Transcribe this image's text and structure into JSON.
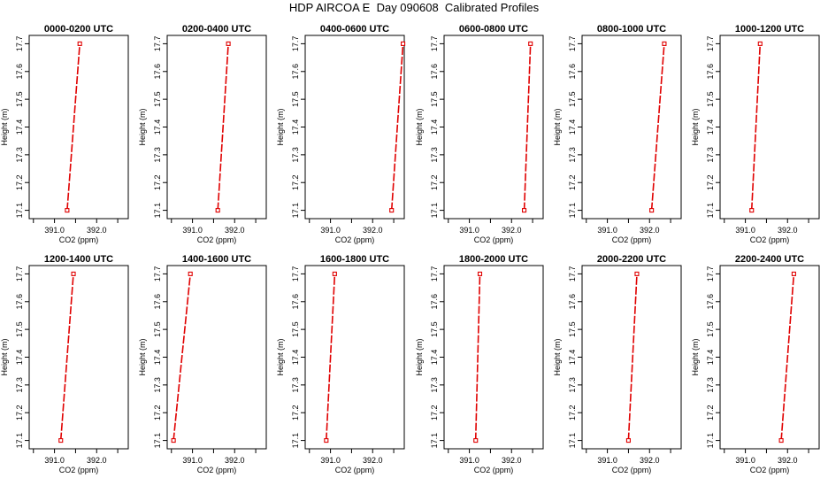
{
  "title": "HDP AIRCOA E  Day 090608  Calibrated Profiles",
  "colors": {
    "line": "#e00000",
    "marker": "#e00000",
    "axis": "#000000"
  },
  "chart_data": [
    {
      "type": "line",
      "title": "0000-0200 UTC",
      "xlabel": "CO2 (ppm)",
      "ylabel": "Height (m)",
      "xlim": [
        390.4,
        392.75
      ],
      "ylim": [
        17.07,
        17.73
      ],
      "xticks": [
        {
          "v": 390.5,
          "label": ""
        },
        {
          "v": 391.0,
          "label": "391.0"
        },
        {
          "v": 391.5,
          "label": ""
        },
        {
          "v": 392.0,
          "label": "392.0"
        },
        {
          "v": 392.5,
          "label": ""
        }
      ],
      "yticks": [
        {
          "v": 17.1,
          "label": "17.1"
        },
        {
          "v": 17.2,
          "label": "17.2"
        },
        {
          "v": 17.3,
          "label": "17.3"
        },
        {
          "v": 17.4,
          "label": "17.4"
        },
        {
          "v": 17.5,
          "label": "17.5"
        },
        {
          "v": 17.6,
          "label": "17.6"
        },
        {
          "v": 17.7,
          "label": "17.7"
        }
      ],
      "points": [
        {
          "x": 391.3,
          "y": 17.1
        },
        {
          "x": 391.6,
          "y": 17.7
        }
      ]
    },
    {
      "type": "line",
      "title": "0200-0400 UTC",
      "xlabel": "CO2 (ppm)",
      "ylabel": "Height (m)",
      "xlim": [
        390.4,
        392.75
      ],
      "ylim": [
        17.07,
        17.73
      ],
      "xticks": [
        {
          "v": 390.5,
          "label": ""
        },
        {
          "v": 391.0,
          "label": "391.0"
        },
        {
          "v": 391.5,
          "label": ""
        },
        {
          "v": 392.0,
          "label": "392.0"
        },
        {
          "v": 392.5,
          "label": ""
        }
      ],
      "yticks": [
        {
          "v": 17.1,
          "label": "17.1"
        },
        {
          "v": 17.2,
          "label": "17.2"
        },
        {
          "v": 17.3,
          "label": "17.3"
        },
        {
          "v": 17.4,
          "label": "17.4"
        },
        {
          "v": 17.5,
          "label": "17.5"
        },
        {
          "v": 17.6,
          "label": "17.6"
        },
        {
          "v": 17.7,
          "label": "17.7"
        }
      ],
      "points": [
        {
          "x": 391.6,
          "y": 17.1
        },
        {
          "x": 391.85,
          "y": 17.7
        }
      ]
    },
    {
      "type": "line",
      "title": "0400-0600 UTC",
      "xlabel": "CO2 (ppm)",
      "ylabel": "Height (m)",
      "xlim": [
        390.4,
        392.75
      ],
      "ylim": [
        17.07,
        17.73
      ],
      "xticks": [
        {
          "v": 390.5,
          "label": ""
        },
        {
          "v": 391.0,
          "label": "391.0"
        },
        {
          "v": 391.5,
          "label": ""
        },
        {
          "v": 392.0,
          "label": "392.0"
        },
        {
          "v": 392.5,
          "label": ""
        }
      ],
      "yticks": [
        {
          "v": 17.1,
          "label": "17.1"
        },
        {
          "v": 17.2,
          "label": "17.2"
        },
        {
          "v": 17.3,
          "label": "17.3"
        },
        {
          "v": 17.4,
          "label": "17.4"
        },
        {
          "v": 17.5,
          "label": "17.5"
        },
        {
          "v": 17.6,
          "label": "17.6"
        },
        {
          "v": 17.7,
          "label": "17.7"
        }
      ],
      "points": [
        {
          "x": 392.45,
          "y": 17.1
        },
        {
          "x": 392.72,
          "y": 17.7
        }
      ]
    },
    {
      "type": "line",
      "title": "0600-0800 UTC",
      "xlabel": "CO2 (ppm)",
      "ylabel": "Height (m)",
      "xlim": [
        390.4,
        392.75
      ],
      "ylim": [
        17.07,
        17.73
      ],
      "xticks": [
        {
          "v": 390.5,
          "label": ""
        },
        {
          "v": 391.0,
          "label": "391.0"
        },
        {
          "v": 391.5,
          "label": ""
        },
        {
          "v": 392.0,
          "label": "392.0"
        },
        {
          "v": 392.5,
          "label": ""
        }
      ],
      "yticks": [
        {
          "v": 17.1,
          "label": "17.1"
        },
        {
          "v": 17.2,
          "label": "17.2"
        },
        {
          "v": 17.3,
          "label": "17.3"
        },
        {
          "v": 17.4,
          "label": "17.4"
        },
        {
          "v": 17.5,
          "label": "17.5"
        },
        {
          "v": 17.6,
          "label": "17.6"
        },
        {
          "v": 17.7,
          "label": "17.7"
        }
      ],
      "points": [
        {
          "x": 392.3,
          "y": 17.1
        },
        {
          "x": 392.45,
          "y": 17.7
        }
      ]
    },
    {
      "type": "line",
      "title": "0800-1000 UTC",
      "xlabel": "CO2 (ppm)",
      "ylabel": "Height (m)",
      "xlim": [
        390.4,
        392.75
      ],
      "ylim": [
        17.07,
        17.73
      ],
      "xticks": [
        {
          "v": 390.5,
          "label": ""
        },
        {
          "v": 391.0,
          "label": "391.0"
        },
        {
          "v": 391.5,
          "label": ""
        },
        {
          "v": 392.0,
          "label": "392.0"
        },
        {
          "v": 392.5,
          "label": ""
        }
      ],
      "yticks": [
        {
          "v": 17.1,
          "label": "17.1"
        },
        {
          "v": 17.2,
          "label": "17.2"
        },
        {
          "v": 17.3,
          "label": "17.3"
        },
        {
          "v": 17.4,
          "label": "17.4"
        },
        {
          "v": 17.5,
          "label": "17.5"
        },
        {
          "v": 17.6,
          "label": "17.6"
        },
        {
          "v": 17.7,
          "label": "17.7"
        }
      ],
      "points": [
        {
          "x": 392.05,
          "y": 17.1
        },
        {
          "x": 392.35,
          "y": 17.7
        }
      ]
    },
    {
      "type": "line",
      "title": "1000-1200 UTC",
      "xlabel": "CO2 (ppm)",
      "ylabel": "Height (m)",
      "xlim": [
        390.4,
        392.75
      ],
      "ylim": [
        17.07,
        17.73
      ],
      "xticks": [
        {
          "v": 390.5,
          "label": ""
        },
        {
          "v": 391.0,
          "label": "391.0"
        },
        {
          "v": 391.5,
          "label": ""
        },
        {
          "v": 392.0,
          "label": "392.0"
        },
        {
          "v": 392.5,
          "label": ""
        }
      ],
      "yticks": [
        {
          "v": 17.1,
          "label": "17.1"
        },
        {
          "v": 17.2,
          "label": "17.2"
        },
        {
          "v": 17.3,
          "label": "17.3"
        },
        {
          "v": 17.4,
          "label": "17.4"
        },
        {
          "v": 17.5,
          "label": "17.5"
        },
        {
          "v": 17.6,
          "label": "17.6"
        },
        {
          "v": 17.7,
          "label": "17.7"
        }
      ],
      "points": [
        {
          "x": 391.15,
          "y": 17.1
        },
        {
          "x": 391.35,
          "y": 17.7
        }
      ]
    },
    {
      "type": "line",
      "title": "1200-1400 UTC",
      "xlabel": "CO2 (ppm)",
      "ylabel": "Height (m)",
      "xlim": [
        390.4,
        392.75
      ],
      "ylim": [
        17.07,
        17.73
      ],
      "xticks": [
        {
          "v": 390.5,
          "label": ""
        },
        {
          "v": 391.0,
          "label": "391.0"
        },
        {
          "v": 391.5,
          "label": ""
        },
        {
          "v": 392.0,
          "label": "392.0"
        },
        {
          "v": 392.5,
          "label": ""
        }
      ],
      "yticks": [
        {
          "v": 17.1,
          "label": "17.1"
        },
        {
          "v": 17.2,
          "label": "17.2"
        },
        {
          "v": 17.3,
          "label": "17.3"
        },
        {
          "v": 17.4,
          "label": "17.4"
        },
        {
          "v": 17.5,
          "label": "17.5"
        },
        {
          "v": 17.6,
          "label": "17.6"
        },
        {
          "v": 17.7,
          "label": "17.7"
        }
      ],
      "points": [
        {
          "x": 391.15,
          "y": 17.1
        },
        {
          "x": 391.45,
          "y": 17.7
        }
      ]
    },
    {
      "type": "line",
      "title": "1400-1600 UTC",
      "xlabel": "CO2 (ppm)",
      "ylabel": "Height (m)",
      "xlim": [
        390.4,
        392.75
      ],
      "ylim": [
        17.07,
        17.73
      ],
      "xticks": [
        {
          "v": 390.5,
          "label": ""
        },
        {
          "v": 391.0,
          "label": "391.0"
        },
        {
          "v": 391.5,
          "label": ""
        },
        {
          "v": 392.0,
          "label": "392.0"
        },
        {
          "v": 392.5,
          "label": ""
        }
      ],
      "yticks": [
        {
          "v": 17.1,
          "label": "17.1"
        },
        {
          "v": 17.2,
          "label": "17.2"
        },
        {
          "v": 17.3,
          "label": "17.3"
        },
        {
          "v": 17.4,
          "label": "17.4"
        },
        {
          "v": 17.5,
          "label": "17.5"
        },
        {
          "v": 17.6,
          "label": "17.6"
        },
        {
          "v": 17.7,
          "label": "17.7"
        }
      ],
      "points": [
        {
          "x": 390.55,
          "y": 17.1
        },
        {
          "x": 390.95,
          "y": 17.7
        }
      ]
    },
    {
      "type": "line",
      "title": "1600-1800 UTC",
      "xlabel": "CO2 (ppm)",
      "ylabel": "Height (m)",
      "xlim": [
        390.4,
        392.75
      ],
      "ylim": [
        17.07,
        17.73
      ],
      "xticks": [
        {
          "v": 390.5,
          "label": ""
        },
        {
          "v": 391.0,
          "label": "391.0"
        },
        {
          "v": 391.5,
          "label": ""
        },
        {
          "v": 392.0,
          "label": "392.0"
        },
        {
          "v": 392.5,
          "label": ""
        }
      ],
      "yticks": [
        {
          "v": 17.1,
          "label": "17.1"
        },
        {
          "v": 17.2,
          "label": "17.2"
        },
        {
          "v": 17.3,
          "label": "17.3"
        },
        {
          "v": 17.4,
          "label": "17.4"
        },
        {
          "v": 17.5,
          "label": "17.5"
        },
        {
          "v": 17.6,
          "label": "17.6"
        },
        {
          "v": 17.7,
          "label": "17.7"
        }
      ],
      "points": [
        {
          "x": 390.9,
          "y": 17.1
        },
        {
          "x": 391.1,
          "y": 17.7
        }
      ]
    },
    {
      "type": "line",
      "title": "1800-2000 UTC",
      "xlabel": "CO2 (ppm)",
      "ylabel": "Height (m)",
      "xlim": [
        390.4,
        392.75
      ],
      "ylim": [
        17.07,
        17.73
      ],
      "xticks": [
        {
          "v": 390.5,
          "label": ""
        },
        {
          "v": 391.0,
          "label": "391.0"
        },
        {
          "v": 391.5,
          "label": ""
        },
        {
          "v": 392.0,
          "label": "392.0"
        },
        {
          "v": 392.5,
          "label": ""
        }
      ],
      "yticks": [
        {
          "v": 17.1,
          "label": "17.1"
        },
        {
          "v": 17.2,
          "label": "17.2"
        },
        {
          "v": 17.3,
          "label": "17.3"
        },
        {
          "v": 17.4,
          "label": "17.4"
        },
        {
          "v": 17.5,
          "label": "17.5"
        },
        {
          "v": 17.6,
          "label": "17.6"
        },
        {
          "v": 17.7,
          "label": "17.7"
        }
      ],
      "points": [
        {
          "x": 391.15,
          "y": 17.1
        },
        {
          "x": 391.25,
          "y": 17.7
        }
      ]
    },
    {
      "type": "line",
      "title": "2000-2200 UTC",
      "xlabel": "CO2 (ppm)",
      "ylabel": "Height (m)",
      "xlim": [
        390.4,
        392.75
      ],
      "ylim": [
        17.07,
        17.73
      ],
      "xticks": [
        {
          "v": 390.5,
          "label": ""
        },
        {
          "v": 391.0,
          "label": "391.0"
        },
        {
          "v": 391.5,
          "label": ""
        },
        {
          "v": 392.0,
          "label": "392.0"
        },
        {
          "v": 392.5,
          "label": ""
        }
      ],
      "yticks": [
        {
          "v": 17.1,
          "label": "17.1"
        },
        {
          "v": 17.2,
          "label": "17.2"
        },
        {
          "v": 17.3,
          "label": "17.3"
        },
        {
          "v": 17.4,
          "label": "17.4"
        },
        {
          "v": 17.5,
          "label": "17.5"
        },
        {
          "v": 17.6,
          "label": "17.6"
        },
        {
          "v": 17.7,
          "label": "17.7"
        }
      ],
      "points": [
        {
          "x": 391.5,
          "y": 17.1
        },
        {
          "x": 391.7,
          "y": 17.7
        }
      ]
    },
    {
      "type": "line",
      "title": "2200-2400 UTC",
      "xlabel": "CO2 (ppm)",
      "ylabel": "Height (m)",
      "xlim": [
        390.4,
        392.75
      ],
      "ylim": [
        17.07,
        17.73
      ],
      "xticks": [
        {
          "v": 390.5,
          "label": ""
        },
        {
          "v": 391.0,
          "label": "391.0"
        },
        {
          "v": 391.5,
          "label": ""
        },
        {
          "v": 392.0,
          "label": "392.0"
        },
        {
          "v": 392.5,
          "label": ""
        }
      ],
      "yticks": [
        {
          "v": 17.1,
          "label": "17.1"
        },
        {
          "v": 17.2,
          "label": "17.2"
        },
        {
          "v": 17.3,
          "label": "17.3"
        },
        {
          "v": 17.4,
          "label": "17.4"
        },
        {
          "v": 17.5,
          "label": "17.5"
        },
        {
          "v": 17.6,
          "label": "17.6"
        },
        {
          "v": 17.7,
          "label": "17.7"
        }
      ],
      "points": [
        {
          "x": 391.85,
          "y": 17.1
        },
        {
          "x": 392.15,
          "y": 17.7
        }
      ]
    }
  ]
}
